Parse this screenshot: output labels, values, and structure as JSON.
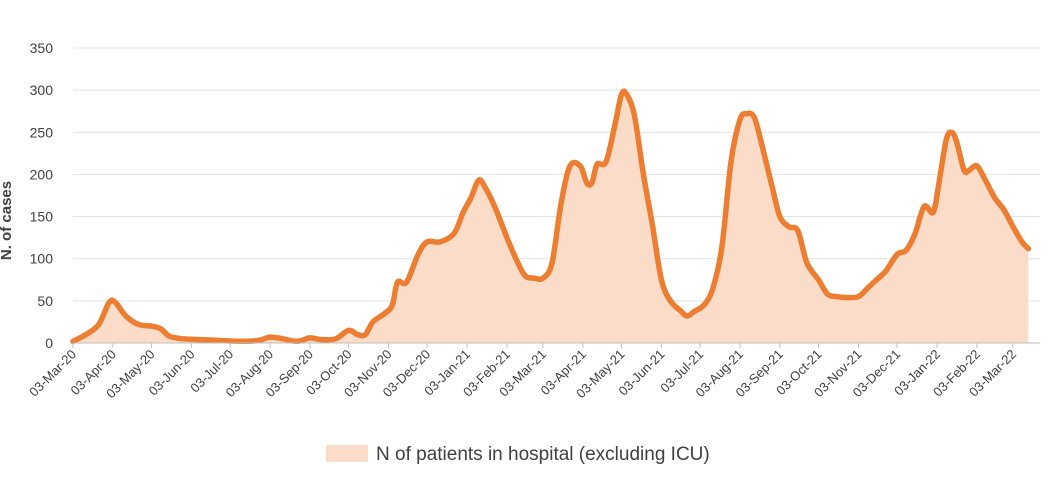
{
  "chart_data": {
    "type": "area",
    "title": "",
    "xlabel": "",
    "ylabel": "N. of cases",
    "ylim": [
      0,
      350
    ],
    "yticks": [
      0,
      50,
      100,
      150,
      200,
      250,
      300,
      350
    ],
    "grid": "horizontal",
    "legend_position": "bottom",
    "x_tick_labels": [
      "03-Mar-20",
      "03-Apr-20",
      "03-May-20",
      "03-Jun-20",
      "03-Jul-20",
      "03-Aug-20",
      "03-Sep-20",
      "03-Oct-20",
      "03-Nov-20",
      "03-Dec-20",
      "03-Jan-21",
      "03-Feb-21",
      "03-Mar-21",
      "03-Apr-21",
      "03-May-21",
      "03-Jun-21",
      "03-Jul-21",
      "03-Aug-21",
      "03-Sep-21",
      "03-Oct-21",
      "03-Nov-21",
      "03-Dec-21",
      "03-Jan-22",
      "03-Feb-22",
      "03-Mar-22"
    ],
    "series": [
      {
        "name": "N of patients in hospital (excluding ICU)",
        "kind": "area",
        "color": "#fbdcc9",
        "points": [
          [
            "2020-03-03",
            2
          ],
          [
            "2020-03-13",
            10
          ],
          [
            "2020-03-23",
            22
          ],
          [
            "2020-03-31",
            48
          ],
          [
            "2020-04-05",
            48
          ],
          [
            "2020-04-13",
            32
          ],
          [
            "2020-04-23",
            22
          ],
          [
            "2020-05-03",
            20
          ],
          [
            "2020-05-10",
            17
          ],
          [
            "2020-05-17",
            8
          ],
          [
            "2020-05-27",
            5
          ],
          [
            "2020-06-10",
            4
          ],
          [
            "2020-06-25",
            3
          ],
          [
            "2020-07-10",
            2
          ],
          [
            "2020-07-25",
            3
          ],
          [
            "2020-08-03",
            7
          ],
          [
            "2020-08-13",
            5
          ],
          [
            "2020-08-24",
            2
          ],
          [
            "2020-09-03",
            6
          ],
          [
            "2020-09-12",
            4
          ],
          [
            "2020-09-23",
            5
          ],
          [
            "2020-10-03",
            15
          ],
          [
            "2020-10-10",
            10
          ],
          [
            "2020-10-16",
            10
          ],
          [
            "2020-10-22",
            25
          ],
          [
            "2020-10-31",
            35
          ],
          [
            "2020-11-06",
            45
          ],
          [
            "2020-11-10",
            72
          ],
          [
            "2020-11-17",
            72
          ],
          [
            "2020-11-26",
            105
          ],
          [
            "2020-12-03",
            120
          ],
          [
            "2020-12-13",
            120
          ],
          [
            "2020-12-24",
            130
          ],
          [
            "2020-12-31",
            155
          ],
          [
            "2021-01-06",
            172
          ],
          [
            "2021-01-12",
            193
          ],
          [
            "2021-01-17",
            185
          ],
          [
            "2021-01-25",
            160
          ],
          [
            "2021-02-03",
            125
          ],
          [
            "2021-02-10",
            100
          ],
          [
            "2021-02-17",
            80
          ],
          [
            "2021-02-24",
            77
          ],
          [
            "2021-03-03",
            77
          ],
          [
            "2021-03-10",
            95
          ],
          [
            "2021-03-17",
            165
          ],
          [
            "2021-03-24",
            210
          ],
          [
            "2021-04-01",
            210
          ],
          [
            "2021-04-06",
            190
          ],
          [
            "2021-04-10",
            190
          ],
          [
            "2021-04-14",
            212
          ],
          [
            "2021-04-21",
            215
          ],
          [
            "2021-04-28",
            260
          ],
          [
            "2021-05-03",
            295
          ],
          [
            "2021-05-07",
            295
          ],
          [
            "2021-05-13",
            270
          ],
          [
            "2021-05-20",
            200
          ],
          [
            "2021-05-27",
            140
          ],
          [
            "2021-06-03",
            75
          ],
          [
            "2021-06-10",
            50
          ],
          [
            "2021-06-18",
            38
          ],
          [
            "2021-06-23",
            32
          ],
          [
            "2021-06-29",
            38
          ],
          [
            "2021-07-06",
            45
          ],
          [
            "2021-07-13",
            65
          ],
          [
            "2021-07-20",
            115
          ],
          [
            "2021-07-27",
            215
          ],
          [
            "2021-08-03",
            265
          ],
          [
            "2021-08-08",
            272
          ],
          [
            "2021-08-14",
            268
          ],
          [
            "2021-08-20",
            235
          ],
          [
            "2021-08-28",
            185
          ],
          [
            "2021-09-03",
            150
          ],
          [
            "2021-09-10",
            138
          ],
          [
            "2021-09-17",
            133
          ],
          [
            "2021-09-24",
            95
          ],
          [
            "2021-10-03",
            75
          ],
          [
            "2021-10-10",
            58
          ],
          [
            "2021-10-17",
            55
          ],
          [
            "2021-10-24",
            54
          ],
          [
            "2021-11-03",
            55
          ],
          [
            "2021-11-10",
            65
          ],
          [
            "2021-11-17",
            75
          ],
          [
            "2021-11-24",
            85
          ],
          [
            "2021-12-03",
            105
          ],
          [
            "2021-12-10",
            110
          ],
          [
            "2021-12-17",
            130
          ],
          [
            "2021-12-24",
            162
          ],
          [
            "2021-12-31",
            155
          ],
          [
            "2022-01-04",
            185
          ],
          [
            "2022-01-10",
            240
          ],
          [
            "2022-01-14",
            250
          ],
          [
            "2022-01-18",
            240
          ],
          [
            "2022-01-24",
            205
          ],
          [
            "2022-01-28",
            205
          ],
          [
            "2022-02-03",
            210
          ],
          [
            "2022-02-10",
            192
          ],
          [
            "2022-02-17",
            172
          ],
          [
            "2022-02-24",
            158
          ],
          [
            "2022-03-03",
            138
          ],
          [
            "2022-03-10",
            120
          ],
          [
            "2022-03-15",
            112
          ]
        ]
      },
      {
        "name": "",
        "kind": "line",
        "color": "#ed7d31",
        "note": "smoothed",
        "points": [
          [
            "2020-03-03",
            2
          ],
          [
            "2020-03-13",
            10
          ],
          [
            "2020-03-23",
            22
          ],
          [
            "2020-03-31",
            48
          ],
          [
            "2020-04-05",
            48
          ],
          [
            "2020-04-13",
            32
          ],
          [
            "2020-04-23",
            22
          ],
          [
            "2020-05-03",
            20
          ],
          [
            "2020-05-10",
            17
          ],
          [
            "2020-05-17",
            8
          ],
          [
            "2020-05-27",
            5
          ],
          [
            "2020-06-10",
            4
          ],
          [
            "2020-06-25",
            3
          ],
          [
            "2020-07-10",
            2
          ],
          [
            "2020-07-25",
            3
          ],
          [
            "2020-08-03",
            7
          ],
          [
            "2020-08-13",
            5
          ],
          [
            "2020-08-24",
            2
          ],
          [
            "2020-09-03",
            6
          ],
          [
            "2020-09-12",
            4
          ],
          [
            "2020-09-23",
            5
          ],
          [
            "2020-10-03",
            15
          ],
          [
            "2020-10-10",
            10
          ],
          [
            "2020-10-16",
            10
          ],
          [
            "2020-10-22",
            25
          ],
          [
            "2020-10-31",
            35
          ],
          [
            "2020-11-06",
            45
          ],
          [
            "2020-11-10",
            72
          ],
          [
            "2020-11-17",
            72
          ],
          [
            "2020-11-26",
            105
          ],
          [
            "2020-12-03",
            120
          ],
          [
            "2020-12-13",
            120
          ],
          [
            "2020-12-24",
            130
          ],
          [
            "2020-12-31",
            155
          ],
          [
            "2021-01-06",
            172
          ],
          [
            "2021-01-12",
            193
          ],
          [
            "2021-01-17",
            185
          ],
          [
            "2021-01-25",
            160
          ],
          [
            "2021-02-03",
            125
          ],
          [
            "2021-02-10",
            100
          ],
          [
            "2021-02-17",
            80
          ],
          [
            "2021-02-24",
            77
          ],
          [
            "2021-03-03",
            77
          ],
          [
            "2021-03-10",
            95
          ],
          [
            "2021-03-17",
            165
          ],
          [
            "2021-03-24",
            210
          ],
          [
            "2021-04-01",
            210
          ],
          [
            "2021-04-06",
            190
          ],
          [
            "2021-04-10",
            190
          ],
          [
            "2021-04-14",
            212
          ],
          [
            "2021-04-21",
            215
          ],
          [
            "2021-04-28",
            260
          ],
          [
            "2021-05-03",
            295
          ],
          [
            "2021-05-07",
            295
          ],
          [
            "2021-05-13",
            270
          ],
          [
            "2021-05-20",
            200
          ],
          [
            "2021-05-27",
            140
          ],
          [
            "2021-06-03",
            75
          ],
          [
            "2021-06-10",
            50
          ],
          [
            "2021-06-18",
            38
          ],
          [
            "2021-06-23",
            32
          ],
          [
            "2021-06-29",
            38
          ],
          [
            "2021-07-06",
            45
          ],
          [
            "2021-07-13",
            65
          ],
          [
            "2021-07-20",
            115
          ],
          [
            "2021-07-27",
            215
          ],
          [
            "2021-08-03",
            265
          ],
          [
            "2021-08-08",
            272
          ],
          [
            "2021-08-14",
            268
          ],
          [
            "2021-08-20",
            235
          ],
          [
            "2021-08-28",
            185
          ],
          [
            "2021-09-03",
            150
          ],
          [
            "2021-09-10",
            138
          ],
          [
            "2021-09-17",
            133
          ],
          [
            "2021-09-24",
            95
          ],
          [
            "2021-10-03",
            75
          ],
          [
            "2021-10-10",
            58
          ],
          [
            "2021-10-17",
            55
          ],
          [
            "2021-10-24",
            54
          ],
          [
            "2021-11-03",
            55
          ],
          [
            "2021-11-10",
            65
          ],
          [
            "2021-11-17",
            75
          ],
          [
            "2021-11-24",
            85
          ],
          [
            "2021-12-03",
            105
          ],
          [
            "2021-12-10",
            110
          ],
          [
            "2021-12-17",
            130
          ],
          [
            "2021-12-24",
            162
          ],
          [
            "2021-12-31",
            155
          ],
          [
            "2022-01-04",
            185
          ],
          [
            "2022-01-10",
            240
          ],
          [
            "2022-01-14",
            250
          ],
          [
            "2022-01-18",
            240
          ],
          [
            "2022-01-24",
            205
          ],
          [
            "2022-01-28",
            205
          ],
          [
            "2022-02-03",
            210
          ],
          [
            "2022-02-10",
            192
          ],
          [
            "2022-02-17",
            172
          ],
          [
            "2022-02-24",
            158
          ],
          [
            "2022-03-03",
            138
          ],
          [
            "2022-03-10",
            120
          ],
          [
            "2022-03-15",
            112
          ]
        ]
      }
    ]
  }
}
